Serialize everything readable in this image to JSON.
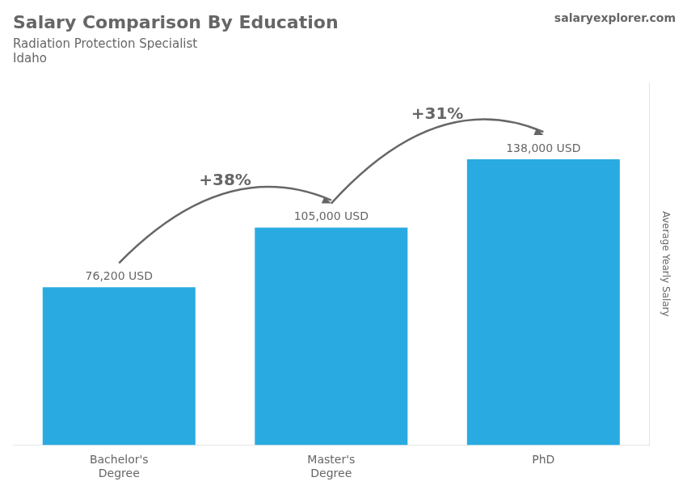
{
  "chart_data": {
    "type": "bar",
    "title": "Salary Comparison By Education",
    "subtitle": [
      "Radiation Protection Specialist",
      "Idaho"
    ],
    "ylabel": "Average Yearly Salary",
    "categories": [
      "Bachelor's\nDegree",
      "Master's\nDegree",
      "PhD"
    ],
    "values": [
      76200,
      105000,
      138000
    ],
    "value_labels": [
      "76,200 USD",
      "105,000 USD",
      "138,000 USD"
    ],
    "data_labels": true,
    "color": "#29ABE2",
    "ylim": [
      0,
      175000
    ],
    "yticks": [],
    "grid": false,
    "tick_labels": "x",
    "annotations": [
      {
        "text": "+38%",
        "from": 0,
        "to": 1
      },
      {
        "text": "+31%",
        "from": 1,
        "to": 2
      },
      {
        "text": "salaryexplorer.com"
      }
    ]
  }
}
